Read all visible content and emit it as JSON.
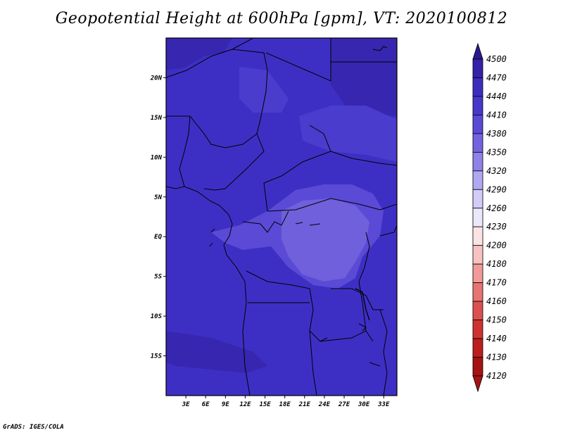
{
  "title": "Geopotential Height at 600hPa [gpm], VT: 2020100812",
  "credit": "GrADS: IGES/COLA",
  "map": {
    "lat_labels": [
      "20N",
      "15N",
      "10N",
      "5N",
      "EQ",
      "5S",
      "10S",
      "15S"
    ],
    "lat_values": [
      20,
      15,
      10,
      5,
      0,
      -5,
      -10,
      -15
    ],
    "lon_labels": [
      "3E",
      "6E",
      "9E",
      "12E",
      "15E",
      "18E",
      "21E",
      "24E",
      "27E",
      "30E",
      "33E"
    ],
    "lon_values": [
      3,
      6,
      9,
      12,
      15,
      18,
      21,
      24,
      27,
      30,
      33
    ],
    "lat_range": [
      -20,
      25
    ],
    "lon_range": [
      0,
      35
    ],
    "dominant_color": "#3e2fc4",
    "low_region_color": "#7060db"
  },
  "colorbar": {
    "levels": [
      "4500",
      "4470",
      "4440",
      "4410",
      "4380",
      "4350",
      "4320",
      "4290",
      "4260",
      "4230",
      "4200",
      "4180",
      "4170",
      "4160",
      "4150",
      "4140",
      "4130",
      "4120"
    ],
    "colors": [
      "#2b1890",
      "#3522a8",
      "#3d2dbf",
      "#4538cb",
      "#5a4ad6",
      "#7264df",
      "#8e82e8",
      "#b0a8f0",
      "#d2ccf7",
      "#ebe8fc",
      "#fde4e4",
      "#f8c2c2",
      "#f19a9a",
      "#e77373",
      "#dc5050",
      "#cf3232",
      "#bc1e1e",
      "#a61212"
    ]
  }
}
